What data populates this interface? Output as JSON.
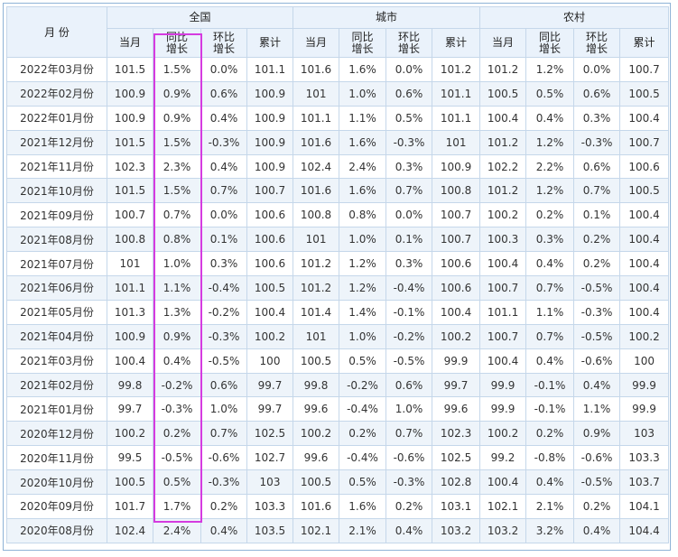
{
  "table": {
    "month_header": "月 份",
    "groups": [
      "全国",
      "城市",
      "农村"
    ],
    "sub_headers": [
      {
        "line1": "当月",
        "line2": ""
      },
      {
        "line1": "同比",
        "line2": "增长"
      },
      {
        "line1": "环比",
        "line2": "增长"
      },
      {
        "line1": "累计",
        "line2": ""
      }
    ],
    "rows": [
      {
        "month": "2022年03月份",
        "cells": [
          "101.5",
          "1.5%",
          "0.0%",
          "101.1",
          "101.6",
          "1.6%",
          "0.0%",
          "101.2",
          "101.2",
          "1.2%",
          "0.0%",
          "100.7"
        ]
      },
      {
        "month": "2022年02月份",
        "cells": [
          "100.9",
          "0.9%",
          "0.6%",
          "100.9",
          "101",
          "1.0%",
          "0.6%",
          "101.1",
          "100.5",
          "0.5%",
          "0.6%",
          "100.5"
        ]
      },
      {
        "month": "2022年01月份",
        "cells": [
          "100.9",
          "0.9%",
          "0.4%",
          "100.9",
          "101.1",
          "1.1%",
          "0.5%",
          "101.1",
          "100.4",
          "0.4%",
          "0.3%",
          "100.4"
        ]
      },
      {
        "month": "2021年12月份",
        "cells": [
          "101.5",
          "1.5%",
          "-0.3%",
          "100.9",
          "101.6",
          "1.6%",
          "-0.3%",
          "101",
          "101.2",
          "1.2%",
          "-0.3%",
          "100.7"
        ]
      },
      {
        "month": "2021年11月份",
        "cells": [
          "102.3",
          "2.3%",
          "0.4%",
          "100.9",
          "102.4",
          "2.4%",
          "0.3%",
          "100.9",
          "102.2",
          "2.2%",
          "0.6%",
          "100.6"
        ]
      },
      {
        "month": "2021年10月份",
        "cells": [
          "101.5",
          "1.5%",
          "0.7%",
          "100.7",
          "101.6",
          "1.6%",
          "0.7%",
          "100.8",
          "101.2",
          "1.2%",
          "0.7%",
          "100.5"
        ]
      },
      {
        "month": "2021年09月份",
        "cells": [
          "100.7",
          "0.7%",
          "0.0%",
          "100.6",
          "100.8",
          "0.8%",
          "0.0%",
          "100.7",
          "100.2",
          "0.2%",
          "0.1%",
          "100.4"
        ]
      },
      {
        "month": "2021年08月份",
        "cells": [
          "100.8",
          "0.8%",
          "0.1%",
          "100.6",
          "101",
          "1.0%",
          "0.1%",
          "100.7",
          "100.3",
          "0.3%",
          "0.2%",
          "100.4"
        ]
      },
      {
        "month": "2021年07月份",
        "cells": [
          "101",
          "1.0%",
          "0.3%",
          "100.6",
          "101.2",
          "1.2%",
          "0.3%",
          "100.6",
          "100.4",
          "0.4%",
          "0.2%",
          "100.4"
        ]
      },
      {
        "month": "2021年06月份",
        "cells": [
          "101.1",
          "1.1%",
          "-0.4%",
          "100.5",
          "101.2",
          "1.2%",
          "-0.4%",
          "100.6",
          "100.7",
          "0.7%",
          "-0.5%",
          "100.4"
        ]
      },
      {
        "month": "2021年05月份",
        "cells": [
          "101.3",
          "1.3%",
          "-0.2%",
          "100.4",
          "101.4",
          "1.4%",
          "-0.1%",
          "100.4",
          "101.1",
          "1.1%",
          "-0.3%",
          "100.4"
        ]
      },
      {
        "month": "2021年04月份",
        "cells": [
          "100.9",
          "0.9%",
          "-0.3%",
          "100.2",
          "101",
          "1.0%",
          "-0.2%",
          "100.2",
          "100.7",
          "0.7%",
          "-0.5%",
          "100.2"
        ]
      },
      {
        "month": "2021年03月份",
        "cells": [
          "100.4",
          "0.4%",
          "-0.5%",
          "100",
          "100.5",
          "0.5%",
          "-0.5%",
          "99.9",
          "100.4",
          "0.4%",
          "-0.6%",
          "100"
        ]
      },
      {
        "month": "2021年02月份",
        "cells": [
          "99.8",
          "-0.2%",
          "0.6%",
          "99.7",
          "99.8",
          "-0.2%",
          "0.6%",
          "99.7",
          "99.9",
          "-0.1%",
          "0.4%",
          "99.9"
        ]
      },
      {
        "month": "2021年01月份",
        "cells": [
          "99.7",
          "-0.3%",
          "1.0%",
          "99.7",
          "99.6",
          "-0.4%",
          "1.0%",
          "99.6",
          "99.9",
          "-0.1%",
          "1.1%",
          "99.9"
        ]
      },
      {
        "month": "2020年12月份",
        "cells": [
          "100.2",
          "0.2%",
          "0.7%",
          "102.5",
          "100.2",
          "0.2%",
          "0.7%",
          "102.3",
          "100.2",
          "0.2%",
          "0.9%",
          "103"
        ]
      },
      {
        "month": "2020年11月份",
        "cells": [
          "99.5",
          "-0.5%",
          "-0.6%",
          "102.7",
          "99.6",
          "-0.4%",
          "-0.6%",
          "102.5",
          "99.2",
          "-0.8%",
          "-0.6%",
          "103.3"
        ]
      },
      {
        "month": "2020年10月份",
        "cells": [
          "100.5",
          "0.5%",
          "-0.3%",
          "103",
          "100.5",
          "0.5%",
          "-0.3%",
          "102.8",
          "100.4",
          "0.4%",
          "-0.5%",
          "103.7"
        ]
      },
      {
        "month": "2020年09月份",
        "cells": [
          "101.7",
          "1.7%",
          "0.2%",
          "103.3",
          "101.6",
          "1.6%",
          "0.2%",
          "103.1",
          "102.1",
          "2.1%",
          "0.2%",
          "104.1"
        ]
      },
      {
        "month": "2020年08月份",
        "cells": [
          "102.4",
          "2.4%",
          "0.4%",
          "103.5",
          "102.1",
          "2.1%",
          "0.4%",
          "103.2",
          "103.2",
          "3.2%",
          "0.4%",
          "104.4"
        ]
      }
    ]
  },
  "colors": {
    "positive": "#e60000",
    "negative": "#2a9a2a",
    "highlight_border": "#d53be0",
    "header_bg": "#eaf2fb"
  }
}
